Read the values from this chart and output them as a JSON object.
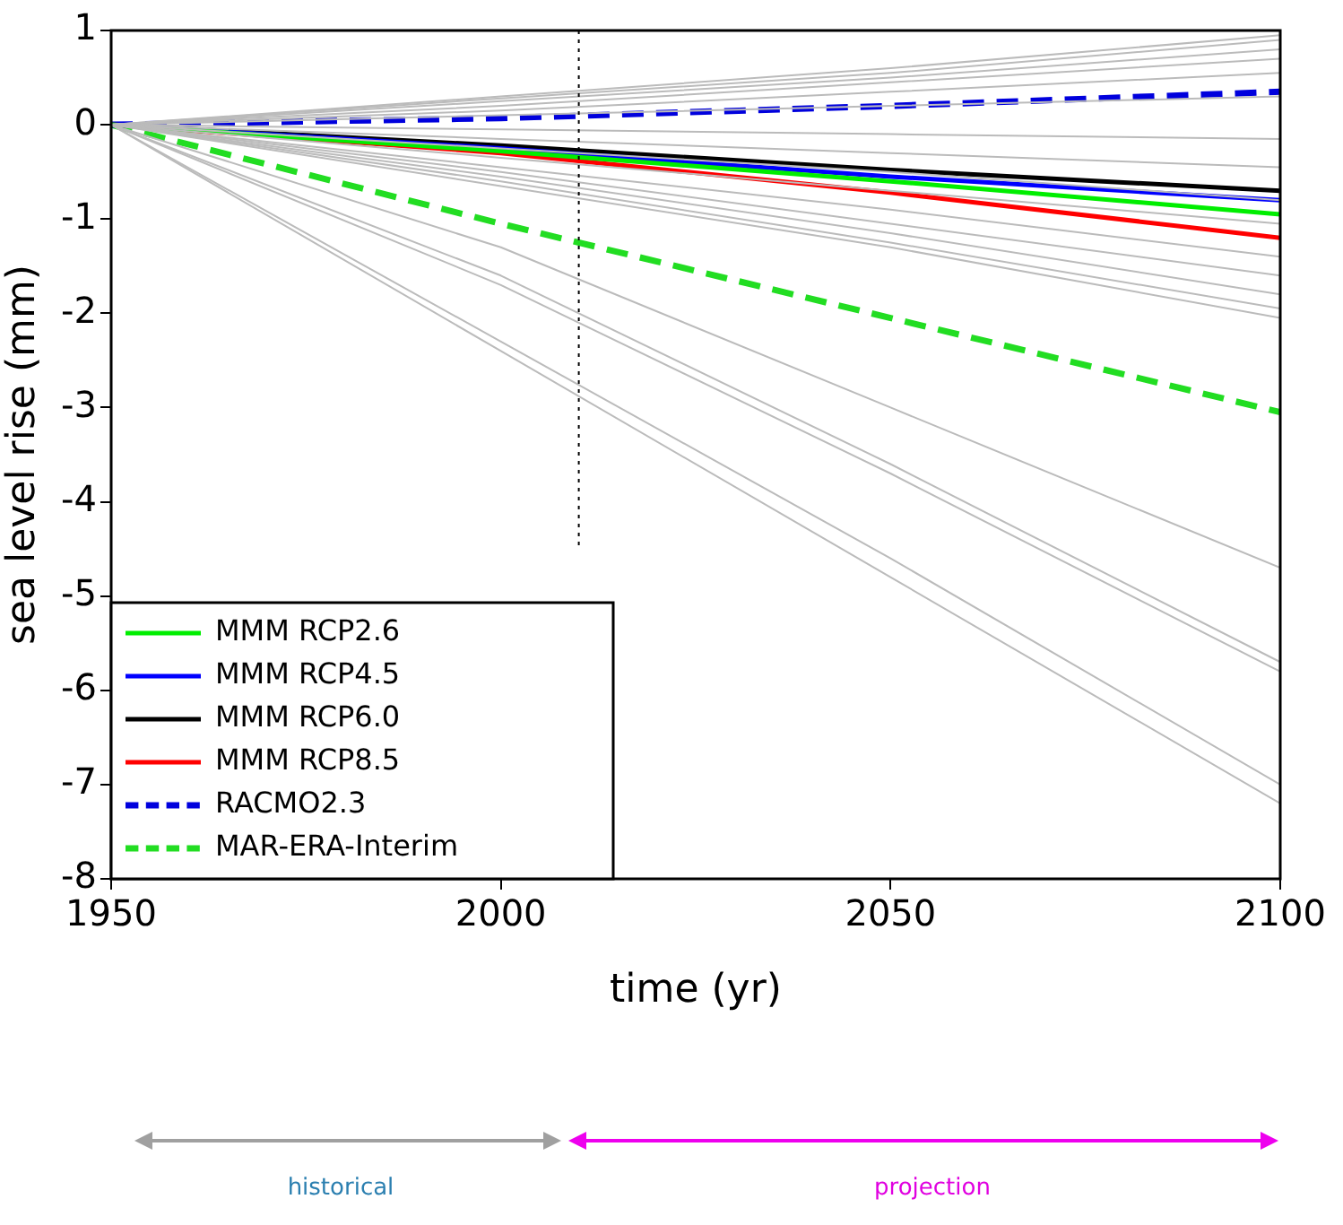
{
  "chart_data": {
    "type": "line",
    "xlabel": "time (yr)",
    "ylabel": "sea level rise (mm)",
    "x": [
      1950,
      2000,
      2050,
      2100
    ],
    "xlim": [
      1950,
      2100
    ],
    "xticks": [
      1950,
      2000,
      2050,
      2100
    ],
    "ylim": [
      -8,
      1
    ],
    "yticks": [
      -8,
      -7,
      -6,
      -5,
      -4,
      -3,
      -2,
      -1,
      0,
      1
    ],
    "grid": false,
    "legend": "bottom left",
    "marker": "none",
    "ref_lines": [
      {
        "axis": "x",
        "value": 2010,
        "color": "#000000",
        "line_style": "dotted"
      }
    ],
    "annotations": [
      "historical",
      "projection"
    ],
    "series": [
      {
        "color": "#bbbbbb",
        "values": [
          0,
          0.3,
          0.6,
          0.95
        ]
      },
      {
        "color": "#bbbbbb",
        "values": [
          0,
          0.28,
          0.55,
          0.9
        ]
      },
      {
        "color": "#bbbbbb",
        "values": [
          0,
          0.25,
          0.5,
          0.8
        ]
      },
      {
        "color": "#bbbbbb",
        "values": [
          0,
          0.2,
          0.45,
          0.7
        ]
      },
      {
        "color": "#bbbbbb",
        "values": [
          0,
          0.15,
          0.35,
          0.55
        ]
      },
      {
        "color": "#bbbbbb",
        "values": [
          0,
          0.1,
          0.2,
          0.3
        ]
      },
      {
        "color": "#bbbbbb",
        "values": [
          0,
          -0.05,
          -0.1,
          -0.15
        ]
      },
      {
        "color": "#bbbbbb",
        "values": [
          0,
          -0.15,
          -0.3,
          -0.45
        ]
      },
      {
        "color": "#bbbbbb",
        "values": [
          0,
          -0.25,
          -0.5,
          -0.8
        ]
      },
      {
        "color": "#bbbbbb",
        "values": [
          0,
          -0.35,
          -0.7,
          -1.05
        ]
      },
      {
        "color": "#bbbbbb",
        "values": [
          0,
          -0.45,
          -0.9,
          -1.4
        ]
      },
      {
        "color": "#bbbbbb",
        "values": [
          0,
          -0.5,
          -1.05,
          -1.6
        ]
      },
      {
        "color": "#bbbbbb",
        "values": [
          0,
          -0.55,
          -1.15,
          -1.8
        ]
      },
      {
        "color": "#bbbbbb",
        "values": [
          0,
          -0.6,
          -1.25,
          -1.95
        ]
      },
      {
        "color": "#bbbbbb",
        "values": [
          0,
          -0.65,
          -1.3,
          -2.05
        ]
      },
      {
        "color": "#bbbbbb",
        "values": [
          0,
          -1.3,
          -3,
          -4.7
        ]
      },
      {
        "color": "#bbbbbb",
        "values": [
          0,
          -1.6,
          -3.6,
          -5.7
        ]
      },
      {
        "color": "#bbbbbb",
        "values": [
          0,
          -1.7,
          -3.7,
          -5.8
        ]
      },
      {
        "color": "#bbbbbb",
        "values": [
          0,
          -2.3,
          -4.6,
          -7
        ]
      },
      {
        "color": "#bbbbbb",
        "values": [
          0,
          -2.4,
          -4.8,
          -7.2
        ]
      },
      {
        "name": "MMM RCP2.6",
        "color": "#00ee00",
        "line_style": "solid",
        "values": [
          0,
          -0.28,
          -0.6,
          -0.95
        ]
      },
      {
        "name": "MMM RCP4.5",
        "color": "#0000ff",
        "line_style": "solid",
        "values": [
          0,
          -0.25,
          -0.55,
          -0.8
        ]
      },
      {
        "name": "MMM RCP6.0",
        "color": "#000000",
        "line_style": "solid",
        "values": [
          0,
          -0.22,
          -0.48,
          -0.7
        ]
      },
      {
        "name": "MMM RCP8.5",
        "color": "#ff0000",
        "line_style": "solid",
        "values": [
          0,
          -0.3,
          -0.72,
          -1.2
        ]
      },
      {
        "name": "RACMO2.3",
        "color": "#0000dd",
        "line_style": "dashed",
        "values": [
          0,
          0.07,
          0.2,
          0.35
        ]
      },
      {
        "name": "MAR-ERA-Interim",
        "color": "#22dd22",
        "line_style": "dashed",
        "values": [
          0,
          -1.05,
          -2.05,
          -3.05
        ]
      }
    ]
  }
}
